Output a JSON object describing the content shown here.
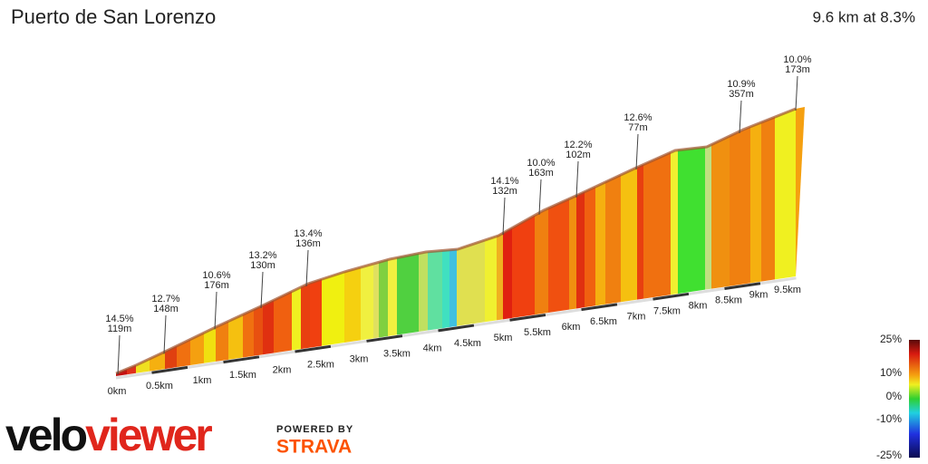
{
  "header": {
    "title": "Puerto de San Lorenzo",
    "summary": "9.6 km at 8.3%"
  },
  "annotations": [
    {
      "grade": "14.5%",
      "length": "119m"
    },
    {
      "grade": "12.7%",
      "length": "148m"
    },
    {
      "grade": "10.6%",
      "length": "176m"
    },
    {
      "grade": "13.2%",
      "length": "130m"
    },
    {
      "grade": "13.4%",
      "length": "136m"
    },
    {
      "grade": "14.1%",
      "length": "132m"
    },
    {
      "grade": "10.0%",
      "length": "163m"
    },
    {
      "grade": "12.2%",
      "length": "102m"
    },
    {
      "grade": "12.6%",
      "length": "77m"
    },
    {
      "grade": "10.9%",
      "length": "357m"
    },
    {
      "grade": "10.0%",
      "length": "173m"
    }
  ],
  "distance_labels": [
    "0km",
    "0.5km",
    "1km",
    "1.5km",
    "2km",
    "2.5km",
    "3km",
    "3.5km",
    "4km",
    "4.5km",
    "5km",
    "5.5km",
    "6km",
    "6.5km",
    "7km",
    "7.5km",
    "8km",
    "8.5km",
    "9km",
    "9.5km"
  ],
  "legend": {
    "labels": [
      "25%",
      "10%",
      "0%",
      "-10%",
      "-25%"
    ]
  },
  "branding": {
    "logo_part1": "velo",
    "logo_part2": "viewer",
    "powered_by": "POWERED BY",
    "partner": "STRAVA"
  }
}
